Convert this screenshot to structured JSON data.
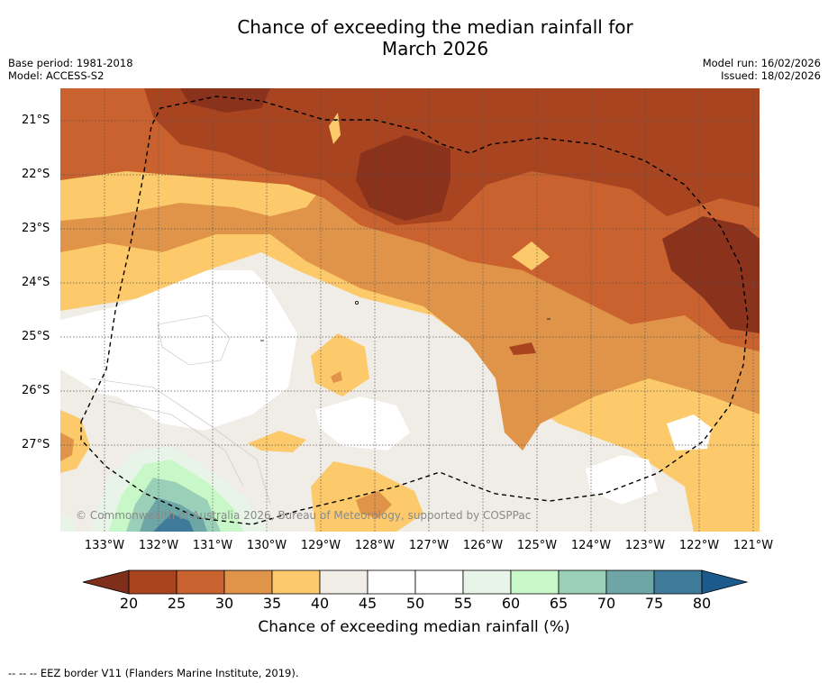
{
  "title_line1": "Chance of exceeding the median rainfall for",
  "title_line2": "March 2026",
  "base_period": "Base period: 1981-2018",
  "model": "Model: ACCESS-S2",
  "model_run": "Model run: 16/02/2026",
  "issued": "Issued: 18/02/2026",
  "copyright": "© Commonwealth of Australia 2026, Bureau of Meteorology, supported by COSPPac",
  "latitudes": [
    "21°S",
    "22°S",
    "23°S",
    "24°S",
    "25°S",
    "26°S",
    "27°S"
  ],
  "longitudes": [
    "133°W",
    "132°W",
    "131°W",
    "130°W",
    "129°W",
    "128°W",
    "127°W",
    "126°W",
    "125°W",
    "124°W",
    "123°W",
    "122°W",
    "121°W"
  ],
  "colorbar": {
    "label": "Chance of exceeding median rainfall (%)",
    "ticks": [
      "20",
      "25",
      "30",
      "35",
      "40",
      "45",
      "50",
      "55",
      "60",
      "65",
      "70",
      "75",
      "80"
    ],
    "colors": [
      "#7f2e1a",
      "#a8441f",
      "#c9622f",
      "#e0944a",
      "#fcca6a",
      "#f0ece6",
      "#ffffff",
      "#ffffff",
      "#e8f4e8",
      "#c8f8c8",
      "#9acfb8",
      "#6ea6a6",
      "#3e7a9a",
      "#1d5a8c"
    ]
  },
  "footnote": "--  --  -- EEZ border V11 (Flanders Marine Institute, 2019)."
}
